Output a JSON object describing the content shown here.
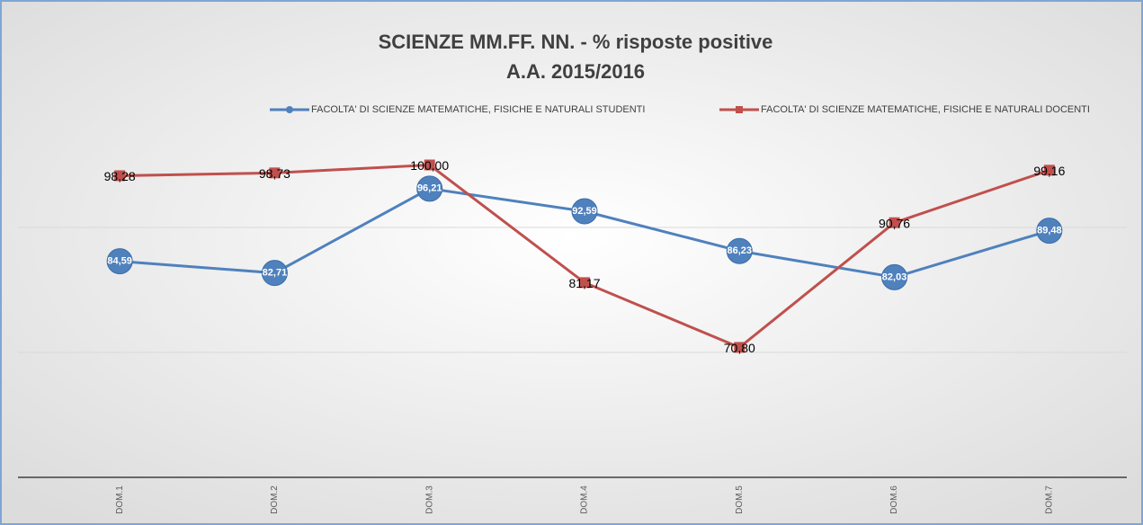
{
  "chart_data": {
    "type": "line",
    "title": [
      "SCIENZE MM.FF. NN. - % risposte positive",
      "A.A. 2015/2016"
    ],
    "categories": [
      "DOM.1",
      "DOM.2",
      "DOM.3",
      "DOM.4",
      "DOM.5",
      "DOM.6",
      "DOM.7"
    ],
    "series": [
      {
        "name": "FACOLTA' DI SCIENZE MATEMATICHE, FISICHE E NATURALI STUDENTI",
        "color": "#4f81bd",
        "marker": "circle",
        "values": [
          84.59,
          82.71,
          96.21,
          92.59,
          86.23,
          82.03,
          89.48
        ],
        "value_labels": [
          "84,59",
          "82,71",
          "96,21",
          "92,59",
          "86,23",
          "82,03",
          "89,48"
        ]
      },
      {
        "name": "FACOLTA' DI SCIENZE MATEMATICHE, FISICHE E NATURALI DOCENTI",
        "color": "#c0504d",
        "marker": "square",
        "values": [
          98.28,
          98.73,
          100.0,
          81.17,
          70.8,
          90.76,
          99.16
        ],
        "value_labels": [
          "98,28",
          "98,73",
          "100,00",
          "81,17",
          "70,80",
          "90,76",
          "99,16"
        ]
      }
    ],
    "ylim": [
      50,
      110
    ],
    "yticks": [
      50,
      70,
      90
    ],
    "grid": true,
    "legend": "top"
  }
}
